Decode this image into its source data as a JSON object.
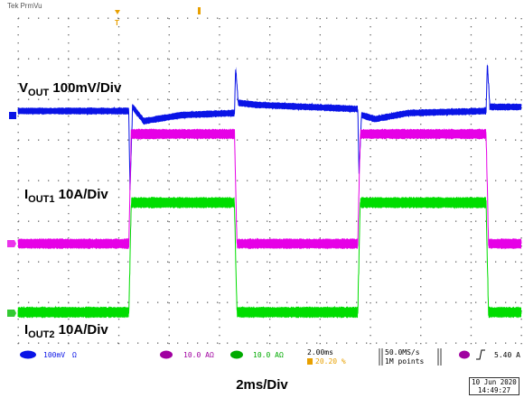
{
  "header": {
    "brand": "Tek",
    "mode": "PrmVu"
  },
  "labels": {
    "vout": {
      "main": "V",
      "sub": "OUT",
      "rest": " 100mV/Div"
    },
    "iout1": {
      "main": "I",
      "sub": "OUT1",
      "rest": " 10A/Div"
    },
    "iout2": {
      "main": "I",
      "sub": "OUT2",
      "rest": " 10A/Div"
    }
  },
  "status_bar": {
    "ch1_scale": "100mV",
    "ch1_bw": "Ω",
    "ch3_scale": "10.0 A",
    "ch4_scale": "10.0 A",
    "timebase": "2.00ms",
    "trigger_pos": "20.20 %",
    "sample_rate": "50.0MS/s",
    "record_length": "1M points",
    "trigger_level": "5.40 A"
  },
  "footer": {
    "title": "2ms/Div",
    "date": "10 Jun 2020",
    "time": "14:49:27"
  },
  "colors": {
    "vout": "#0a14e6",
    "iout1": "#e600e6",
    "iout2": "#00dd00",
    "grid": "#666666"
  },
  "chart_data": {
    "type": "line",
    "title": "",
    "x_unit": "ms",
    "x_range": [
      0,
      20
    ],
    "ylabel": "",
    "series": [
      {
        "name": "VOUT 100mV/Div",
        "unit": "mV",
        "points": [
          [
            0,
            0
          ],
          [
            4.4,
            0
          ],
          [
            4.45,
            -200
          ],
          [
            4.55,
            10
          ],
          [
            5.0,
            -25
          ],
          [
            6.5,
            -10
          ],
          [
            8.6,
            -5
          ],
          [
            8.65,
            110
          ],
          [
            8.75,
            20
          ],
          [
            9.5,
            15
          ],
          [
            11.5,
            10
          ],
          [
            13.5,
            5
          ],
          [
            13.55,
            -150
          ],
          [
            13.65,
            -10
          ],
          [
            14.2,
            -20
          ],
          [
            15.5,
            -5
          ],
          [
            18.6,
            0
          ],
          [
            18.65,
            120
          ],
          [
            18.75,
            10
          ],
          [
            20,
            10
          ]
        ]
      },
      {
        "name": "IOUT1 10A/Div",
        "unit": "A",
        "points": [
          [
            0,
            0
          ],
          [
            4.4,
            0
          ],
          [
            4.5,
            27
          ],
          [
            8.6,
            27
          ],
          [
            8.7,
            0
          ],
          [
            13.5,
            0
          ],
          [
            13.6,
            27
          ],
          [
            18.6,
            27
          ],
          [
            18.7,
            0
          ],
          [
            20,
            0
          ]
        ]
      },
      {
        "name": "IOUT2 10A/Div",
        "unit": "A",
        "points": [
          [
            0,
            0
          ],
          [
            4.4,
            0
          ],
          [
            4.5,
            27
          ],
          [
            8.6,
            27
          ],
          [
            8.7,
            0
          ],
          [
            13.5,
            0
          ],
          [
            13.6,
            27
          ],
          [
            18.6,
            27
          ],
          [
            18.7,
            0
          ],
          [
            20,
            0
          ]
        ]
      }
    ]
  }
}
